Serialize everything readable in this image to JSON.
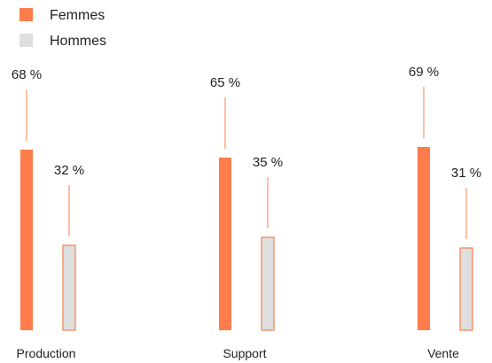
{
  "colors": {
    "femmes_fill": "#FF7C4C",
    "hommes_fill": "#DEDEDE",
    "accent": "#FF7C4C",
    "text": "#222222"
  },
  "legend": {
    "items": [
      {
        "label": "Femmes",
        "color": "#FF7C4C"
      },
      {
        "label": "Hommes",
        "color": "#DEDEDE"
      }
    ]
  },
  "chart_data": {
    "type": "bar",
    "categories": [
      "Production",
      "Support",
      "Vente"
    ],
    "series": [
      {
        "name": "Femmes",
        "values": [
          68,
          65,
          69
        ]
      },
      {
        "name": "Hommes",
        "values": [
          32,
          35,
          31
        ]
      }
    ],
    "unit": "%",
    "ylim": [
      0,
      100
    ],
    "grid": false,
    "legend_position": "top-left",
    "data_labels": true
  }
}
